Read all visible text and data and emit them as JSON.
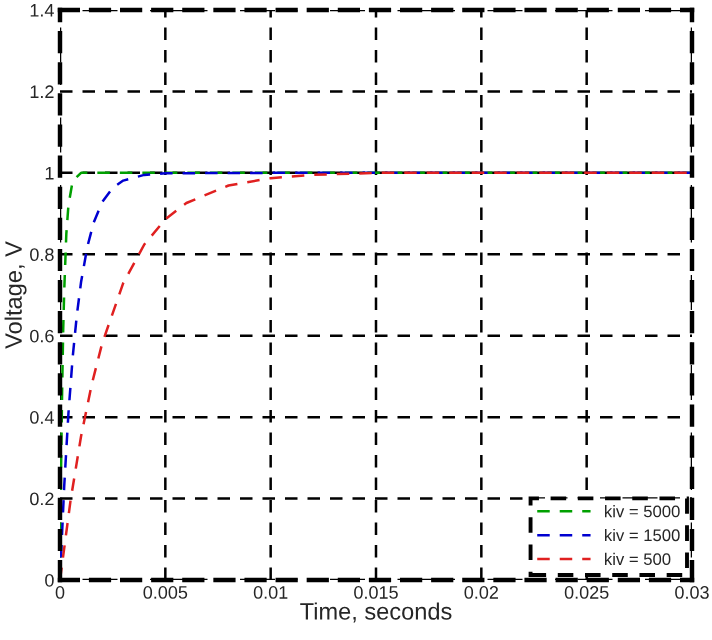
{
  "chart_data": {
    "type": "line",
    "xlabel": "Time, seconds",
    "ylabel": "Voltage, V",
    "xlim": [
      0,
      0.03
    ],
    "xticks": [
      0,
      0.005,
      0.01,
      0.015,
      0.02,
      0.025,
      0.03
    ],
    "ylim": [
      0,
      1.4
    ],
    "yticks": [
      0,
      0.2,
      0.4,
      0.6,
      0.8,
      1,
      1.2,
      1.4
    ],
    "grid": true,
    "legend": "bottom right",
    "line_style": "dashed",
    "series": [
      {
        "name": "kiv = 5000",
        "color": "#00a000",
        "x": [
          0,
          5e-05,
          0.0001,
          0.00015,
          0.0002,
          0.0003,
          0.0004,
          0.0006,
          0.0008,
          0.001,
          0.03
        ],
        "values": [
          0,
          0.27,
          0.46,
          0.61,
          0.71,
          0.85,
          0.92,
          0.98,
          0.99,
          1,
          1
        ]
      },
      {
        "name": "kiv = 1500",
        "color": "#0000d0",
        "x": [
          0,
          0.0002,
          0.0004,
          0.0006,
          0.0008,
          0.001,
          0.0013,
          0.0016,
          0.002,
          0.0025,
          0.003,
          0.004,
          0.005,
          0.01,
          0.03
        ],
        "values": [
          0,
          0.231,
          0.409,
          0.546,
          0.651,
          0.732,
          0.819,
          0.878,
          0.928,
          0.963,
          0.981,
          0.995,
          0.999,
          1,
          1
        ]
      },
      {
        "name": "kiv = 500",
        "color": "#e02020",
        "x": [
          0,
          0.0005,
          0.001,
          0.0015,
          0.002,
          0.003,
          0.004,
          0.005,
          0.006,
          0.008,
          0.01,
          0.012,
          0.015,
          0.02,
          0.03
        ],
        "values": [
          0,
          0.195,
          0.353,
          0.479,
          0.581,
          0.729,
          0.824,
          0.886,
          0.926,
          0.969,
          0.987,
          0.995,
          1,
          1,
          1
        ]
      }
    ]
  }
}
